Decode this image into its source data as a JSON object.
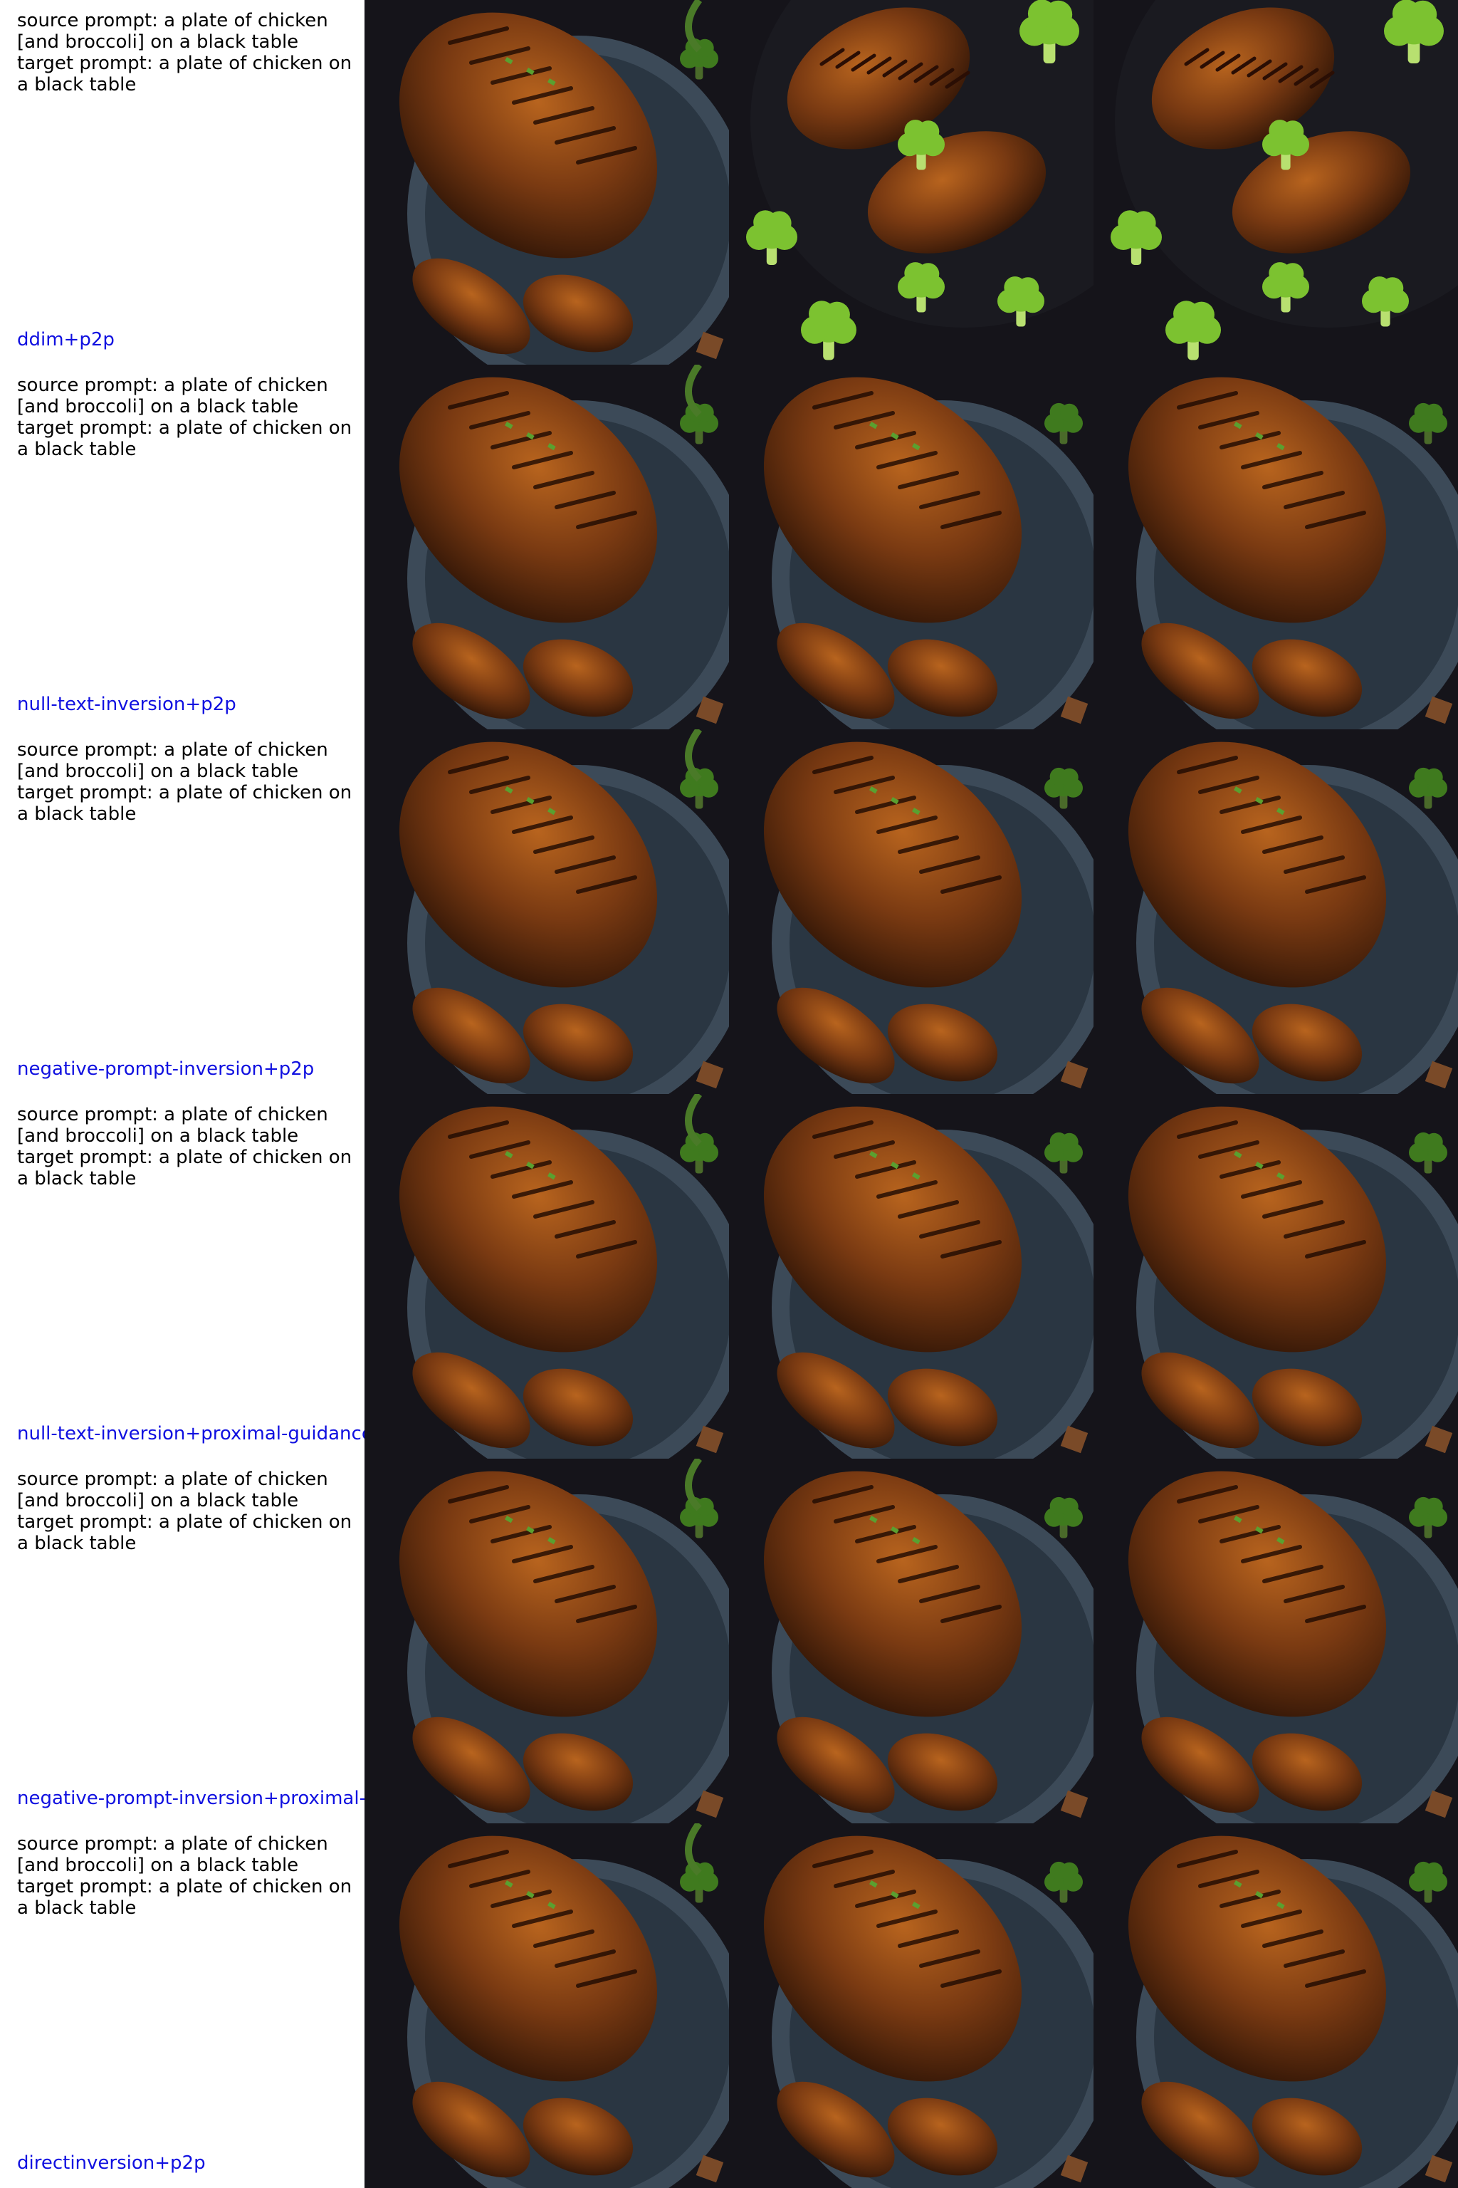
{
  "rows": [
    {
      "source_prompt": "source prompt: a plate of chicken [and broccoli] on a black table",
      "target_prompt": "target prompt: a plate of chicken on a black table",
      "method": "ddim+p2p",
      "images": [
        "chicken-and-broccoli-photo",
        "grilled-chicken-with-broccoli-photo",
        "grilled-chicken-with-broccoli-photo"
      ]
    },
    {
      "source_prompt": "source prompt: a plate of chicken [and broccoli] on a black table",
      "target_prompt": "target prompt: a plate of chicken on a black table",
      "method": "null-text-inversion+p2p",
      "images": [
        "chicken-and-broccoli-photo",
        "roast-chicken-photo",
        "roast-chicken-photo"
      ]
    },
    {
      "source_prompt": "source prompt: a plate of chicken [and broccoli] on a black table",
      "target_prompt": "target prompt: a plate of chicken on a black table",
      "method": "negative-prompt-inversion+p2p",
      "images": [
        "chicken-and-broccoli-photo",
        "roast-chicken-photo",
        "roast-chicken-photo"
      ]
    },
    {
      "source_prompt": "source prompt: a plate of chicken [and broccoli] on a black table",
      "target_prompt": "target prompt: a plate of chicken on a black table",
      "method": "null-text-inversion+proximal-guidance",
      "images": [
        "chicken-and-broccoli-photo",
        "roast-chicken-photo",
        "roast-chicken-photo"
      ]
    },
    {
      "source_prompt": "source prompt: a plate of chicken [and broccoli] on a black table",
      "target_prompt": "target prompt: a plate of chicken on a black table",
      "method": "negative-prompt-inversion+proximal-g",
      "images": [
        "chicken-and-broccoli-photo",
        "roast-chicken-photo",
        "roast-chicken-photo"
      ]
    },
    {
      "source_prompt": "source prompt: a plate of chicken [and broccoli] on a black table",
      "target_prompt": "target prompt: a plate of chicken on a black table",
      "method": "directinversion+p2p",
      "images": [
        "chicken-and-broccoli-photo",
        "roast-chicken-photo",
        "roast-chicken-photo"
      ]
    }
  ],
  "colors": {
    "prompt_text": "#000000",
    "method_label": "#1010e0",
    "background": "#ffffff",
    "table": "#15141a",
    "plate": "#3c4a58",
    "chicken_dark": "#3a1a08",
    "chicken_mid": "#7a3a12",
    "chicken_light": "#b8641e",
    "broccoli": "#3f7a1e",
    "broccoli_bright": "#7cc230"
  }
}
